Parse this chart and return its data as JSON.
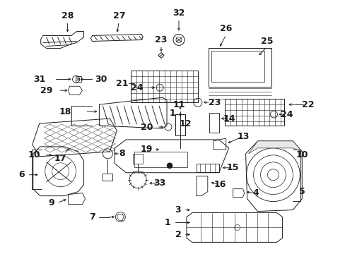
{
  "bg_color": "#ffffff",
  "fig_width": 4.89,
  "fig_height": 3.6,
  "dpi": 100,
  "dark": "#1a1a1a",
  "lw": 0.65
}
